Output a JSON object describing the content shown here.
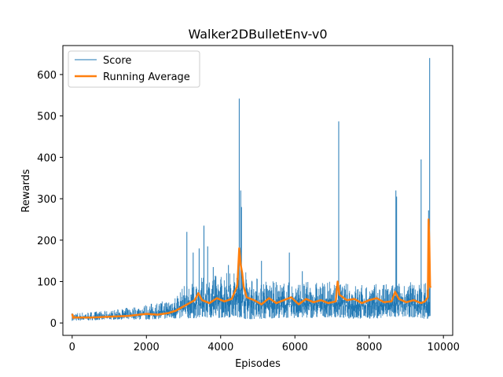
{
  "chart_data": {
    "type": "line",
    "title": "Walker2DBulletEnv-v0",
    "xlabel": "Episodes",
    "ylabel": "Rewards",
    "xlim": [
      -250,
      10250
    ],
    "ylim": [
      -30,
      670
    ],
    "x_ticks": [
      0,
      2000,
      4000,
      6000,
      8000,
      10000
    ],
    "y_ticks": [
      0,
      100,
      200,
      300,
      400,
      500,
      600
    ],
    "grid": false,
    "legend_position": "upper-left",
    "x_max": 9650,
    "colors": {
      "score": "#1f77b4",
      "running_average": "#ff7f0e"
    },
    "series": [
      {
        "name": "Score",
        "color": "#1f77b4",
        "band": {
          "x": [
            0,
            1000,
            2000,
            2500,
            2800,
            3000,
            3500,
            4000,
            4400,
            4500,
            4600,
            5000,
            5500,
            6000,
            6500,
            7000,
            7500,
            8000,
            8500,
            9000,
            9500,
            9650
          ],
          "low": [
            5,
            8,
            8,
            10,
            10,
            10,
            12,
            12,
            14,
            14,
            10,
            8,
            12,
            12,
            12,
            14,
            10,
            10,
            12,
            15,
            10,
            10
          ],
          "high": [
            25,
            30,
            45,
            55,
            70,
            90,
            110,
            120,
            130,
            130,
            130,
            110,
            100,
            100,
            100,
            100,
            95,
            95,
            95,
            100,
            100,
            100
          ]
        },
        "spikes": [
          {
            "x": 3090,
            "y": 220
          },
          {
            "x": 3260,
            "y": 170
          },
          {
            "x": 3420,
            "y": 180
          },
          {
            "x": 3550,
            "y": 235
          },
          {
            "x": 3650,
            "y": 185
          },
          {
            "x": 3800,
            "y": 135
          },
          {
            "x": 4210,
            "y": 140
          },
          {
            "x": 4500,
            "y": 542
          },
          {
            "x": 4540,
            "y": 320
          },
          {
            "x": 4560,
            "y": 280
          },
          {
            "x": 5100,
            "y": 150
          },
          {
            "x": 5850,
            "y": 170
          },
          {
            "x": 6200,
            "y": 125
          },
          {
            "x": 7180,
            "y": 487
          },
          {
            "x": 8720,
            "y": 320
          },
          {
            "x": 8740,
            "y": 305
          },
          {
            "x": 9400,
            "y": 395
          },
          {
            "x": 9600,
            "y": 272
          },
          {
            "x": 9630,
            "y": 640
          }
        ]
      },
      {
        "name": "Running Average",
        "color": "#ff7f0e",
        "x": [
          0,
          30,
          60,
          100,
          500,
          1000,
          1500,
          1800,
          2000,
          2300,
          2600,
          2800,
          3000,
          3200,
          3300,
          3400,
          3500,
          3700,
          3900,
          4100,
          4300,
          4450,
          4500,
          4540,
          4580,
          4620,
          4700,
          4900,
          5100,
          5300,
          5500,
          5700,
          5900,
          6100,
          6300,
          6500,
          6700,
          6900,
          7100,
          7150,
          7200,
          7400,
          7600,
          7800,
          8000,
          8200,
          8400,
          8600,
          8700,
          8760,
          8800,
          9000,
          9200,
          9400,
          9500,
          9580,
          9600,
          9620,
          9640,
          9650
        ],
        "y": [
          22,
          12,
          14,
          13,
          13,
          15,
          17,
          20,
          22,
          20,
          24,
          30,
          40,
          50,
          55,
          72,
          55,
          48,
          60,
          52,
          58,
          90,
          180,
          140,
          120,
          88,
          62,
          55,
          45,
          60,
          48,
          55,
          62,
          45,
          58,
          50,
          55,
          48,
          52,
          100,
          68,
          55,
          58,
          48,
          55,
          60,
          50,
          52,
          75,
          65,
          58,
          50,
          55,
          48,
          52,
          62,
          250,
          200,
          90,
          85
        ]
      }
    ]
  }
}
